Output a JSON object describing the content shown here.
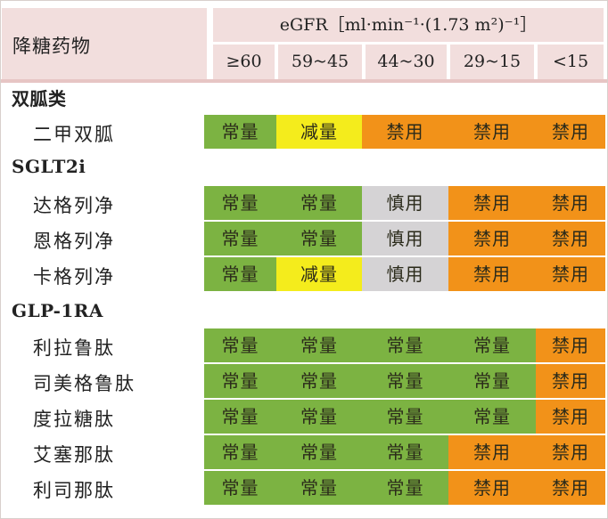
{
  "header": {
    "drug_col": "降糖药物",
    "egfr_label": "eGFR",
    "egfr_units": "［ml·min⁻¹·(1.73 m²)⁻¹］",
    "ranges": [
      "≥60",
      "59~45",
      "44~30",
      "29~15",
      "<15"
    ]
  },
  "groups": [
    {
      "name": "双胍类",
      "drugs": [
        {
          "name": "二甲双胍",
          "cells": [
            "常量",
            "减量",
            "禁用",
            "禁用",
            "禁用"
          ],
          "states": [
            "normal",
            "reduce",
            "contra",
            "contra",
            "contra"
          ]
        }
      ]
    },
    {
      "name": "SGLT2i",
      "drugs": [
        {
          "name": "达格列净",
          "cells": [
            "常量",
            "常量",
            "慎用",
            "禁用",
            "禁用"
          ],
          "states": [
            "normal",
            "normal",
            "caution",
            "contra",
            "contra"
          ]
        },
        {
          "name": "恩格列净",
          "cells": [
            "常量",
            "常量",
            "慎用",
            "禁用",
            "禁用"
          ],
          "states": [
            "normal",
            "normal",
            "caution",
            "contra",
            "contra"
          ]
        },
        {
          "name": "卡格列净",
          "cells": [
            "常量",
            "减量",
            "慎用",
            "禁用",
            "禁用"
          ],
          "states": [
            "normal",
            "reduce",
            "caution",
            "contra",
            "contra"
          ]
        }
      ]
    },
    {
      "name": "GLP-1RA",
      "drugs": [
        {
          "name": "利拉鲁肽",
          "cells": [
            "常量",
            "常量",
            "常量",
            "常量",
            "禁用"
          ],
          "states": [
            "normal",
            "normal",
            "normal",
            "normal",
            "contra"
          ]
        },
        {
          "name": "司美格鲁肽",
          "cells": [
            "常量",
            "常量",
            "常量",
            "常量",
            "禁用"
          ],
          "states": [
            "normal",
            "normal",
            "normal",
            "normal",
            "contra"
          ]
        },
        {
          "name": "度拉糖肽",
          "cells": [
            "常量",
            "常量",
            "常量",
            "常量",
            "禁用"
          ],
          "states": [
            "normal",
            "normal",
            "normal",
            "normal",
            "contra"
          ]
        },
        {
          "name": "艾塞那肽",
          "cells": [
            "常量",
            "常量",
            "常量",
            "禁用",
            "禁用"
          ],
          "states": [
            "normal",
            "normal",
            "normal",
            "contra",
            "contra"
          ]
        },
        {
          "name": "利司那肽",
          "cells": [
            "常量",
            "常量",
            "常量",
            "禁用",
            "禁用"
          ],
          "states": [
            "normal",
            "normal",
            "normal",
            "contra",
            "contra"
          ]
        }
      ]
    }
  ],
  "colors": {
    "normal": "#7cb342",
    "reduce": "#f4ec1c",
    "contra": "#f29219",
    "caution": "#d5d3d5",
    "header": "#f2dedd"
  }
}
